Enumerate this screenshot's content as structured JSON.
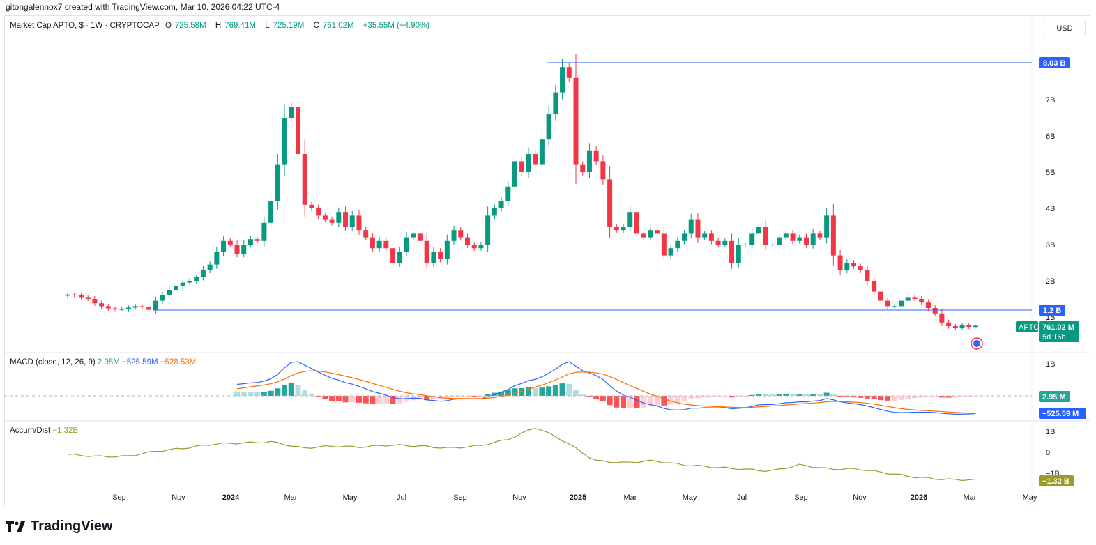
{
  "header": {
    "credit": "gitongalennox7 created with TradingView.com, Mar 10, 2026 04:22 UTC-4"
  },
  "legend": {
    "symbol": "Market Cap APTO, $ · 1W · CRYPTOCAP",
    "o_label": "O",
    "o": "725.58M",
    "h_label": "H",
    "h": "769.41M",
    "l_label": "L",
    "l": "725.19M",
    "c_label": "C",
    "c": "761.02M",
    "change": "+35.55M (+4.90%)"
  },
  "currency_button": "USD",
  "macd_legend": {
    "title": "MACD (close, 12, 26, 9)",
    "hist": "2.95M",
    "macd": "−525.59M",
    "signal": "−528.53M"
  },
  "ad_legend": {
    "title": "Accum/Dist",
    "value": "−1.32B"
  },
  "price_axis": [
    "7B",
    "6B",
    "5B",
    "4B",
    "3B",
    "2B",
    "1B"
  ],
  "macd_axis": [
    "1B"
  ],
  "ad_axis": [
    "1B",
    "0",
    "−1B"
  ],
  "time_axis": [
    "Sep",
    "Nov",
    "2024",
    "Mar",
    "May",
    "Jul",
    "Sep",
    "Nov",
    "2025",
    "Mar",
    "May",
    "Jul",
    "Sep",
    "Nov",
    "2026",
    "Mar",
    "May"
  ],
  "badges": {
    "high_line": "8.03 B",
    "support_line": "1.2 B",
    "symbol": "APTO",
    "last_price": "761.02 M",
    "countdown": "5d 16h",
    "macd_hist": "2.95 M",
    "macd_line": "−525.59 M",
    "ad_value": "−1.32 B"
  },
  "branding": {
    "logo_text": "TradingView"
  },
  "colors": {
    "up": "#089981",
    "down": "#f23645",
    "macd": "#2962ff",
    "signal": "#ff6d00",
    "ad": "#9c9a2a",
    "line": "#2962ff"
  },
  "chart_data": {
    "type": "candlestick",
    "title": "Market Cap APTO, $ · 1W · CRYPTOCAP",
    "interval": "1W",
    "units": "B USD",
    "start_week": "2023-08-07",
    "closes": [
      1.62,
      1.6,
      1.55,
      1.5,
      1.38,
      1.3,
      1.24,
      1.22,
      1.22,
      1.26,
      1.3,
      1.27,
      1.2,
      1.45,
      1.6,
      1.75,
      1.85,
      1.95,
      2.0,
      2.1,
      2.3,
      2.45,
      2.8,
      3.1,
      3.0,
      2.75,
      3.0,
      3.15,
      3.1,
      3.6,
      4.2,
      5.2,
      6.5,
      6.8,
      5.5,
      4.1,
      4.0,
      3.8,
      3.7,
      3.6,
      3.9,
      3.5,
      3.8,
      3.4,
      3.2,
      2.9,
      3.1,
      2.9,
      2.5,
      2.8,
      3.2,
      3.3,
      3.1,
      2.5,
      2.8,
      2.6,
      3.1,
      3.4,
      3.2,
      3.0,
      2.9,
      3.0,
      3.8,
      4.0,
      4.2,
      4.6,
      5.3,
      5.0,
      5.5,
      5.2,
      5.9,
      6.6,
      7.2,
      7.9,
      7.6,
      5.2,
      5.0,
      5.6,
      5.3,
      4.8,
      3.5,
      3.4,
      3.5,
      3.9,
      3.3,
      3.2,
      3.4,
      3.3,
      2.7,
      2.9,
      3.1,
      3.3,
      3.7,
      3.2,
      3.3,
      3.1,
      3.0,
      3.1,
      2.5,
      3.0,
      3.0,
      3.3,
      3.5,
      3.0,
      3.0,
      3.2,
      3.3,
      3.1,
      3.2,
      3.0,
      3.3,
      3.2,
      3.8,
      2.7,
      2.3,
      2.5,
      2.4,
      2.3,
      2.0,
      1.7,
      1.45,
      1.3,
      1.3,
      1.45,
      1.55,
      1.5,
      1.4,
      1.25,
      1.1,
      0.85,
      0.75,
      0.7,
      0.77,
      0.73,
      0.761
    ],
    "last_candle": {
      "open": 0.72558,
      "high": 0.76941,
      "low": 0.72519,
      "close": 0.76102
    },
    "horizontal_lines": [
      8.03,
      1.2
    ],
    "ylim": [
      0,
      8.5
    ],
    "accum_dist_monthly": [
      -0.1,
      -0.2,
      -0.2,
      0.05,
      0.2,
      0.4,
      0.45,
      0.5,
      0.2,
      0.3,
      0.25,
      0.35,
      0.3,
      0.2,
      0.3,
      0.6,
      1.2,
      0.5,
      -0.4,
      -0.5,
      -0.4,
      -0.6,
      -0.7,
      -0.8,
      -0.9,
      -0.6,
      -0.8,
      -0.8,
      -1.0,
      -1.2,
      -1.3,
      -1.32
    ],
    "macd_params": {
      "fast": 12,
      "slow": 26,
      "signal": 9
    }
  }
}
